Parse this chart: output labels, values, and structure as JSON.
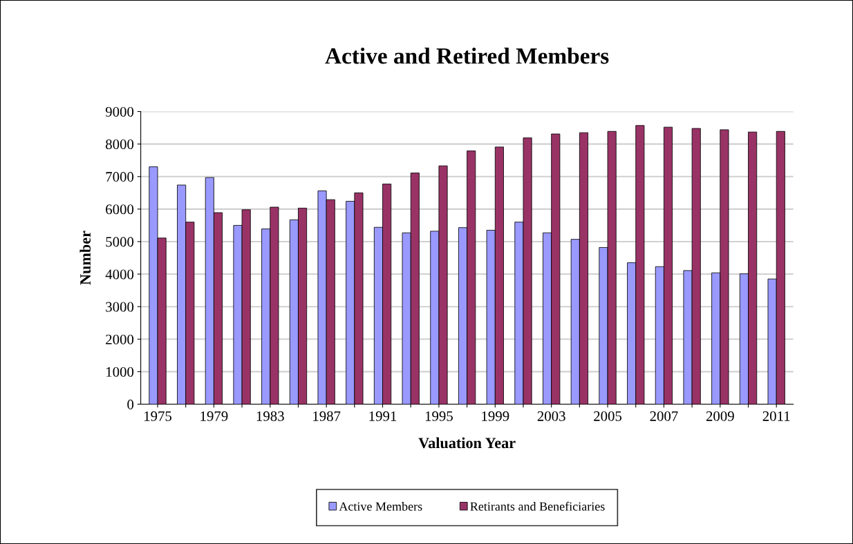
{
  "chart_data": {
    "type": "bar",
    "title": "Active and Retired Members",
    "xlabel": "Valuation Year",
    "ylabel": "Number",
    "categories": [
      "1975",
      null,
      "1979",
      null,
      "1983",
      null,
      "1987",
      null,
      "1991",
      null,
      "1995",
      null,
      "1999",
      null,
      "2003",
      null,
      "2005",
      null,
      "2007",
      null,
      "2009",
      null,
      "2011"
    ],
    "series": [
      {
        "name": "Active Members",
        "color": "#9999ff",
        "values": [
          7300,
          6740,
          6970,
          5500,
          5390,
          5670,
          6560,
          6240,
          5440,
          5270,
          5320,
          5430,
          5350,
          5600,
          5270,
          5070,
          4820,
          4350,
          4230,
          4110,
          4040,
          4010,
          3850
        ]
      },
      {
        "name": "Retirants and Beneficiaries",
        "color": "#993366",
        "values": [
          5110,
          5600,
          5890,
          5980,
          6060,
          6030,
          6290,
          6500,
          6770,
          7110,
          7330,
          7790,
          7910,
          8190,
          8310,
          8350,
          8390,
          8570,
          8520,
          8480,
          8440,
          8370,
          8390
        ]
      }
    ],
    "ylim": [
      0,
      9000
    ],
    "yticks": [
      0,
      1000,
      2000,
      3000,
      4000,
      5000,
      6000,
      7000,
      8000,
      9000
    ],
    "grid": "y",
    "legend": "bottom"
  }
}
